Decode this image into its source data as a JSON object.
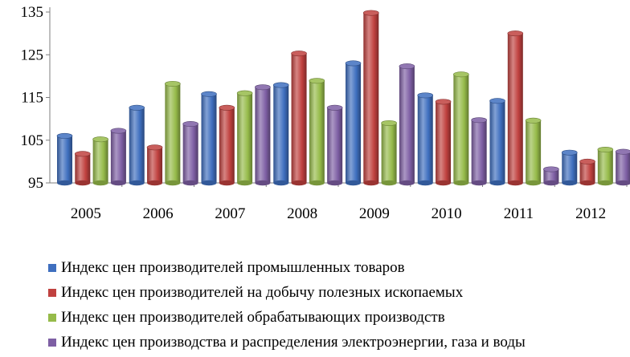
{
  "chart_data": {
    "type": "bar",
    "title": "",
    "xlabel": "",
    "ylabel": "",
    "categories": [
      "2005",
      "2006",
      "2007",
      "2008",
      "2009",
      "2010",
      "2011",
      "2012"
    ],
    "ylim": [
      95,
      135
    ],
    "yticks": [
      "95",
      "105",
      "115",
      "125",
      "135"
    ],
    "grid": false,
    "legend_position": "bottom",
    "series": [
      {
        "name": "Индекс цен производителей промышленных товаров",
        "color": "#3f6fbf",
        "values": [
          106.0,
          112.6,
          115.8,
          117.9,
          123.0,
          115.5,
          114.2,
          102.1
        ]
      },
      {
        "name": "Индекс цен производителей на добычу полезных ископаемых",
        "color": "#c0413f",
        "values": [
          101.8,
          103.3,
          112.6,
          125.3,
          134.8,
          114.0,
          130.0,
          100.0
        ]
      },
      {
        "name": "Индекс цен производителей обрабатывающих производств",
        "color": "#96bb4a",
        "values": [
          105.2,
          118.2,
          116.0,
          118.9,
          109.0,
          120.4,
          109.6,
          102.8
        ]
      },
      {
        "name": "Индекс цен производства и распределения электроэнергии, газа и воды",
        "color": "#7e5fa4",
        "values": [
          107.2,
          108.8,
          117.4,
          112.6,
          122.3,
          109.7,
          98.2,
          102.3
        ]
      }
    ]
  }
}
